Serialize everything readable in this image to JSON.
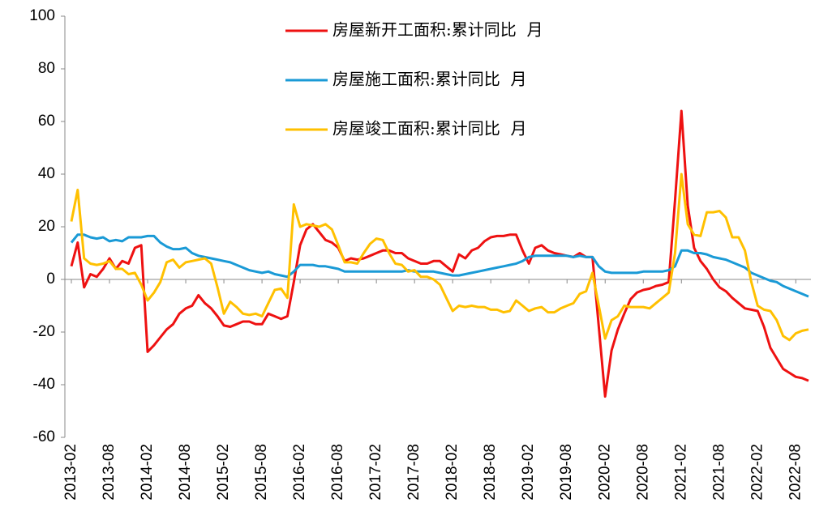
{
  "chart_data": {
    "type": "line",
    "categories": [
      "2013-02",
      null,
      null,
      null,
      null,
      null,
      "2013-08",
      null,
      null,
      null,
      null,
      null,
      "2014-02",
      null,
      null,
      null,
      null,
      null,
      "2014-08",
      null,
      null,
      null,
      null,
      null,
      "2015-02",
      null,
      null,
      null,
      null,
      null,
      "2015-08",
      null,
      null,
      null,
      null,
      null,
      "2016-02",
      null,
      null,
      null,
      null,
      null,
      "2016-08",
      null,
      null,
      null,
      null,
      null,
      "2017-02",
      null,
      null,
      null,
      null,
      null,
      "2017-08",
      null,
      null,
      null,
      null,
      null,
      "2018-02",
      null,
      null,
      null,
      null,
      null,
      "2018-08",
      null,
      null,
      null,
      null,
      null,
      "2019-02",
      null,
      null,
      null,
      null,
      null,
      "2019-08",
      null,
      null,
      null,
      null,
      null,
      "2020-02",
      null,
      null,
      null,
      null,
      null,
      "2020-08",
      null,
      null,
      null,
      null,
      null,
      "2021-02",
      null,
      null,
      null,
      null,
      null,
      "2021-08",
      null,
      null,
      null,
      null,
      null,
      "2022-02",
      null,
      null,
      null,
      null,
      null,
      "2022-08",
      null,
      null
    ],
    "series": [
      {
        "name": "房屋新开工面积:累计同比  月",
        "color": "#ee1111",
        "values": [
          5,
          14,
          -3,
          2,
          1,
          4,
          8,
          4,
          7,
          6,
          12,
          13,
          -27.5,
          -25,
          -22,
          -19,
          -17,
          -13,
          -11,
          -10,
          -6,
          -9,
          -11,
          -14,
          -17.5,
          -18,
          -17,
          -16,
          -16,
          -17,
          -17,
          -13,
          -14,
          -15,
          -14,
          -1,
          13,
          19,
          21,
          18,
          15,
          14,
          12,
          7,
          8,
          7.5,
          8,
          9,
          10,
          11,
          11,
          10,
          10,
          8,
          7,
          6,
          6,
          7,
          7,
          5,
          3,
          9.5,
          8,
          11,
          12,
          14.5,
          16,
          16.5,
          16.5,
          17,
          17,
          11,
          6,
          12,
          13,
          11,
          10,
          9.5,
          9,
          8.5,
          10,
          8.5,
          8.5,
          -18,
          -44.5,
          -27,
          -19,
          -13,
          -7.5,
          -5,
          -4,
          -3.5,
          -2.5,
          -2,
          -1,
          30,
          64,
          28,
          12,
          7,
          4,
          0,
          -3,
          -4.5,
          -7,
          -9,
          -11,
          -11.5,
          -12,
          -18,
          -26,
          -30,
          -34,
          -35.5,
          -37,
          -37.5,
          -38.5
        ]
      },
      {
        "name": "房屋施工面积:累计同比  月",
        "color": "#1a9ad6",
        "values": [
          14,
          17,
          17,
          16,
          15.5,
          16,
          14.5,
          15,
          14.5,
          16,
          16,
          16,
          16.5,
          16.5,
          14,
          12.5,
          11.5,
          11.5,
          12,
          10,
          9,
          8.5,
          8,
          7.5,
          7,
          6.5,
          5.5,
          4.5,
          3.5,
          3,
          2.5,
          3,
          2,
          1.5,
          1,
          3,
          5.5,
          5.5,
          5.5,
          5,
          5,
          4.5,
          4,
          3,
          3,
          3,
          3,
          3,
          3,
          3,
          3,
          3,
          3,
          3.5,
          3,
          3,
          3,
          3,
          2.5,
          2,
          1.5,
          1.5,
          2,
          2.5,
          3,
          3.5,
          4,
          4.5,
          5,
          5.5,
          6,
          7,
          8.5,
          9,
          9,
          9,
          9,
          9,
          9,
          8.5,
          9,
          8.5,
          8.5,
          5,
          3,
          2.5,
          2.5,
          2.5,
          2.5,
          2.5,
          3,
          3,
          3,
          3,
          3.5,
          5,
          11,
          11,
          10,
          10,
          9.5,
          8.5,
          8,
          7.5,
          6.5,
          5.5,
          4.5,
          2.5,
          1.5,
          0.5,
          -0.5,
          -1,
          -2.5,
          -3.5,
          -4.5,
          -5.5,
          -6.5
        ]
      },
      {
        "name": "房屋竣工面积:累计同比  月",
        "color": "#ffc000",
        "values": [
          22,
          34,
          8,
          6,
          5.5,
          6,
          7,
          4,
          4,
          2,
          2.5,
          -2,
          -8,
          -5,
          -1,
          6.5,
          7.5,
          4.5,
          6.5,
          7,
          7.5,
          8,
          6,
          -3,
          -13,
          -8.5,
          -10.5,
          -13,
          -13.5,
          -13,
          -14,
          -9,
          -4,
          -3.5,
          -7,
          28.5,
          20,
          21,
          20.5,
          20,
          21,
          19,
          13,
          6.5,
          6.5,
          6,
          10,
          13.5,
          15.5,
          15,
          10,
          6,
          5.5,
          3,
          3.5,
          1,
          1,
          0,
          -2,
          -7,
          -12,
          -10,
          -10.5,
          -10,
          -10.5,
          -10.5,
          -11.5,
          -11.5,
          -12.5,
          -12,
          -8,
          -10,
          -12,
          -11,
          -10.5,
          -12.5,
          -12.5,
          -11,
          -10,
          -9,
          -5.5,
          -4.5,
          2.5,
          -10,
          -22.5,
          -15.5,
          -14,
          -10,
          -10.5,
          -10.5,
          -10.5,
          -11,
          -9,
          -7,
          -5,
          10,
          40,
          21,
          17,
          16.5,
          25.5,
          25.5,
          26,
          23.5,
          16,
          16,
          11,
          -1,
          -10,
          -11.5,
          -12,
          -15.5,
          -21.5,
          -23,
          -20.5,
          -19.5,
          -19
        ]
      }
    ],
    "ylim": [
      -60,
      100
    ],
    "yticks": [
      -60,
      -40,
      -20,
      0,
      20,
      40,
      60,
      80,
      100
    ],
    "legend": "top"
  }
}
